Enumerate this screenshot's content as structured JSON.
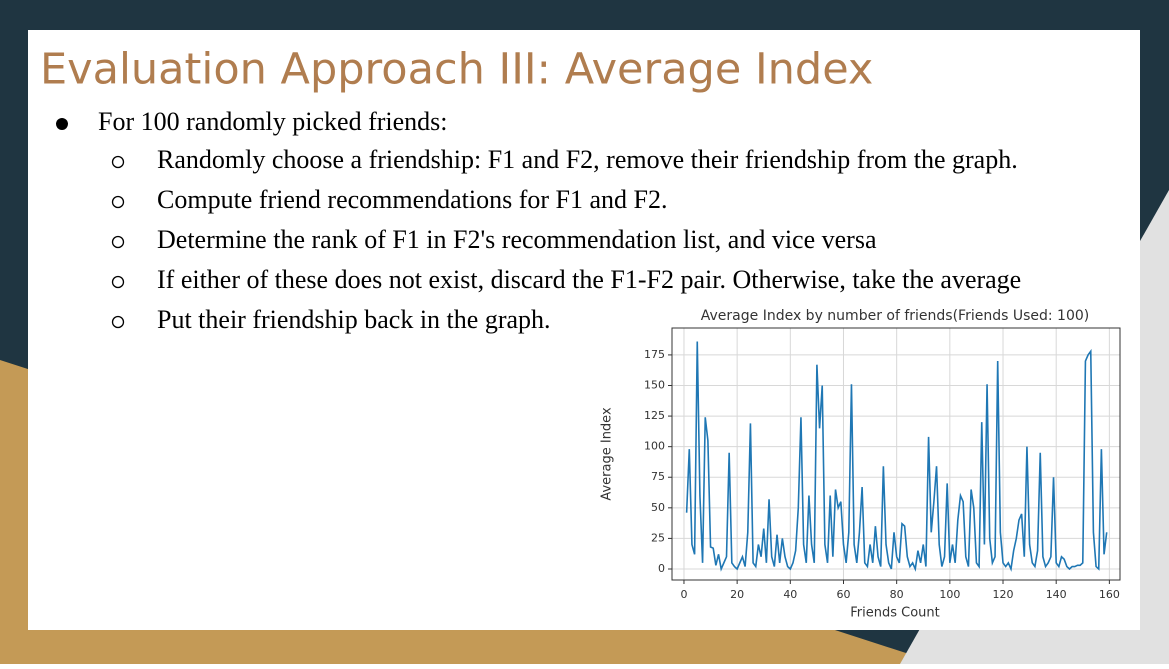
{
  "slide": {
    "title": "Evaluation Approach III: Average Index",
    "bullet": "For 100 randomly picked friends:",
    "sub_bullets": [
      "Randomly choose a friendship: F1 and F2, remove their friendship from the graph.",
      "Compute friend recommendations for F1 and F2.",
      "Determine the rank of F1 in F2's recommendation list, and vice versa",
      "If either of these does not exist, discard the F1-F2 pair. Otherwise, take the average",
      "Put their friendship back in the graph."
    ]
  },
  "chart_data": {
    "type": "line",
    "title": "Average Index by number of friends(Friends Used: 100)",
    "xlabel": "Friends Count",
    "ylabel": "Average Index",
    "x": [
      1,
      2,
      3,
      4,
      5,
      6,
      7,
      8,
      9,
      10,
      11,
      12,
      13,
      14,
      15,
      16,
      17,
      18,
      19,
      20,
      21,
      22,
      23,
      24,
      25,
      26,
      27,
      28,
      29,
      30,
      31,
      32,
      33,
      34,
      35,
      36,
      37,
      38,
      39,
      40,
      41,
      42,
      43,
      44,
      45,
      46,
      47,
      48,
      49,
      50,
      51,
      52,
      53,
      54,
      55,
      56,
      57,
      58,
      59,
      60,
      61,
      62,
      63,
      64,
      65,
      66,
      67,
      68,
      69,
      70,
      71,
      72,
      73,
      74,
      75,
      76,
      77,
      78,
      79,
      80,
      81,
      82,
      83,
      84,
      85,
      86,
      87,
      88,
      89,
      90,
      91,
      92,
      93,
      94,
      95,
      96,
      97,
      98,
      99,
      100,
      101,
      102,
      103,
      104,
      105,
      106,
      107,
      108,
      109,
      110,
      111,
      112,
      113,
      114,
      115,
      116,
      117,
      118,
      119,
      120,
      121,
      122,
      123,
      124,
      125,
      126,
      127,
      128,
      129,
      130,
      131,
      132,
      133,
      134,
      135,
      136,
      137,
      138,
      139,
      140,
      141,
      142,
      143,
      144,
      145,
      146,
      147,
      148,
      149,
      150,
      151,
      152,
      153,
      154,
      155,
      156,
      157,
      158,
      159
    ],
    "series": [
      {
        "color": "#1f77b4",
        "values": [
          46,
          98,
          20,
          12,
          186,
          60,
          5,
          124,
          105,
          18,
          17,
          3,
          12,
          0,
          5,
          10,
          95,
          5,
          2,
          0,
          5,
          10,
          2,
          30,
          119,
          5,
          2,
          20,
          10,
          33,
          5,
          57,
          10,
          2,
          28,
          5,
          25,
          10,
          2,
          0,
          5,
          15,
          50,
          124,
          20,
          5,
          60,
          20,
          5,
          167,
          115,
          150,
          20,
          5,
          60,
          10,
          65,
          50,
          55,
          20,
          5,
          30,
          151,
          20,
          5,
          30,
          67,
          5,
          2,
          20,
          5,
          35,
          10,
          2,
          84,
          20,
          5,
          0,
          30,
          10,
          5,
          37,
          35,
          10,
          2,
          5,
          0,
          15,
          5,
          20,
          2,
          108,
          30,
          55,
          84,
          20,
          2,
          10,
          70,
          5,
          20,
          5,
          40,
          60,
          55,
          10,
          2,
          65,
          50,
          5,
          2,
          120,
          20,
          151,
          25,
          5,
          10,
          170,
          30,
          5,
          2,
          5,
          0,
          15,
          25,
          40,
          45,
          10,
          100,
          20,
          5,
          2,
          15,
          95,
          10,
          2,
          5,
          10,
          75,
          5,
          2,
          10,
          8,
          2,
          0,
          2,
          2,
          3,
          3,
          5,
          170,
          175,
          178,
          30,
          2,
          0,
          98,
          12,
          30
        ]
      }
    ],
    "xlim": [
      -4.5,
      164
    ],
    "ylim": [
      -9,
      197
    ],
    "xticks": [
      0,
      20,
      40,
      60,
      80,
      100,
      120,
      140,
      160
    ],
    "yticks": [
      0,
      25,
      50,
      75,
      100,
      125,
      150,
      175
    ],
    "grid": true
  }
}
